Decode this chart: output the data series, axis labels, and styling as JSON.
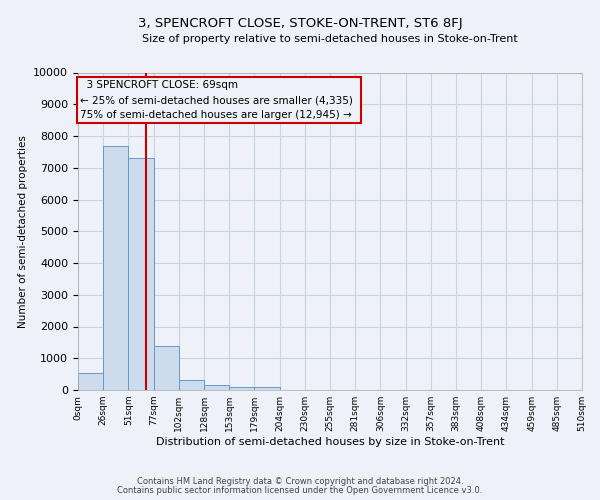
{
  "title": "3, SPENCROFT CLOSE, STOKE-ON-TRENT, ST6 8FJ",
  "subtitle": "Size of property relative to semi-detached houses in Stoke-on-Trent",
  "xlabel": "Distribution of semi-detached houses by size in Stoke-on-Trent",
  "ylabel": "Number of semi-detached properties",
  "footnote1": "Contains HM Land Registry data © Crown copyright and database right 2024.",
  "footnote2": "Contains public sector information licensed under the Open Government Licence v3.0.",
  "bar_values": [
    550,
    7700,
    7300,
    1380,
    330,
    160,
    110,
    90,
    0,
    0,
    0,
    0,
    0,
    0,
    0,
    0,
    0,
    0,
    0,
    0
  ],
  "bin_edges": [
    0,
    25.5,
    51,
    76.5,
    102,
    127.5,
    153,
    178.5,
    204,
    229.5,
    255,
    280.5,
    306,
    331.5,
    357,
    382.5,
    408,
    433.5,
    459,
    484.5,
    510
  ],
  "tick_labels": [
    "0sqm",
    "26sqm",
    "51sqm",
    "77sqm",
    "102sqm",
    "128sqm",
    "153sqm",
    "179sqm",
    "204sqm",
    "230sqm",
    "255sqm",
    "281sqm",
    "306sqm",
    "332sqm",
    "357sqm",
    "383sqm",
    "408sqm",
    "434sqm",
    "459sqm",
    "485sqm",
    "510sqm"
  ],
  "bar_color": "#ccdcec",
  "bar_edge_color": "#6699cc",
  "property_size": 69,
  "property_name": "3 SPENCROFT CLOSE: 69sqm",
  "pct25_label": "← 25% of semi-detached houses are smaller (4,335)",
  "pct75_label": "75% of semi-detached houses are larger (12,945) →",
  "red_line_color": "#cc0000",
  "annotation_box_color": "#cc0000",
  "ylim": [
    0,
    10000
  ],
  "yticks": [
    0,
    1000,
    2000,
    3000,
    4000,
    5000,
    6000,
    7000,
    8000,
    9000,
    10000
  ],
  "grid_color": "#c8d4e4",
  "bg_color": "#eef2f8"
}
